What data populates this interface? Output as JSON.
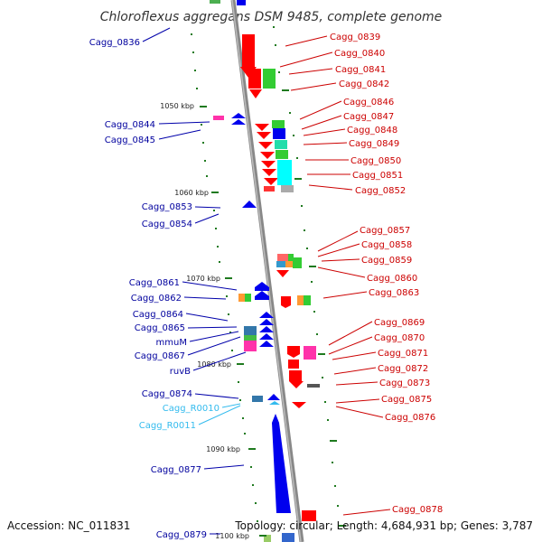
{
  "title": "Chloroflexus aggregans DSM 9485, complete genome",
  "footer": {
    "accession": "Accession: NC_011831",
    "topology": "Topology: circular; Length: 4,684,931 bp; Genes: 3,787"
  },
  "colors": {
    "forward_label": "#cc0000",
    "reverse_label": "#00009e",
    "rna_label": "#33bbee",
    "backbone": "#888888",
    "tick": "#1f7a1f"
  },
  "scale_labels": [
    "1050 kbp",
    "1060 kbp",
    "1070 kbp",
    "1080 kbp",
    "1090 kbp",
    "1100 kbp"
  ],
  "left_labels": [
    "Cagg_0836",
    "Cagg_0844",
    "Cagg_0845",
    "Cagg_0853",
    "Cagg_0854",
    "Cagg_0861",
    "Cagg_0862",
    "Cagg_0864",
    "Cagg_0865",
    "mmuM",
    "Cagg_0867",
    "ruvB",
    "Cagg_0874",
    "Cagg_R0010",
    "Cagg_R0011",
    "Cagg_0877",
    "Cagg_0879"
  ],
  "right_labels": [
    "Cagg_0839",
    "Cagg_0840",
    "Cagg_0841",
    "Cagg_0842",
    "Cagg_0846",
    "Cagg_0847",
    "Cagg_0848",
    "Cagg_0849",
    "Cagg_0850",
    "Cagg_0851",
    "Cagg_0852",
    "Cagg_0857",
    "Cagg_0858",
    "Cagg_0859",
    "Cagg_0860",
    "Cagg_0863",
    "Cagg_0869",
    "Cagg_0870",
    "Cagg_0871",
    "Cagg_0872",
    "Cagg_0873",
    "Cagg_0875",
    "Cagg_0876",
    "Cagg_0878"
  ]
}
